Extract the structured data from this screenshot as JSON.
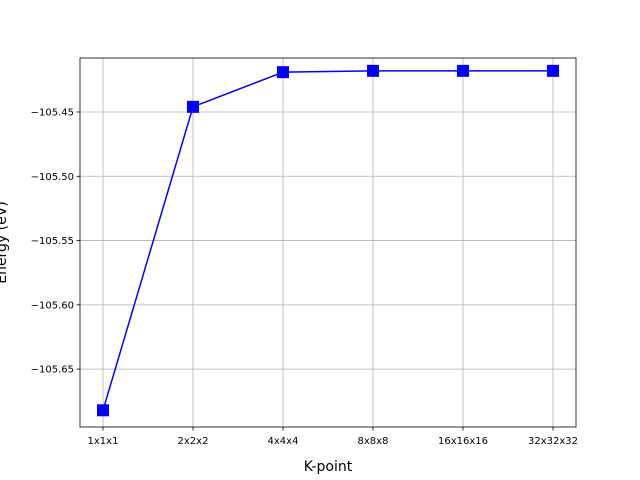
{
  "chart_data": {
    "type": "line",
    "title": "",
    "xlabel": "K-point",
    "ylabel": "Energy (eV)",
    "categories": [
      "1x1x1",
      "2x2x2",
      "4x4x4",
      "8x8x8",
      "16x16x16",
      "32x32x32"
    ],
    "series": [
      {
        "values": [
          -105.682,
          -105.446,
          -105.419,
          -105.418,
          -105.418,
          -105.418
        ],
        "color": "#0000ff",
        "marker": "square"
      }
    ],
    "ylim": [
      -105.695,
      -105.408
    ],
    "yticks": [
      -105.65,
      -105.6,
      -105.55,
      -105.5,
      -105.45
    ],
    "ytick_labels": [
      "−105.65",
      "−105.60",
      "−105.55",
      "−105.50",
      "−105.45"
    ],
    "grid": true,
    "legend": false
  }
}
